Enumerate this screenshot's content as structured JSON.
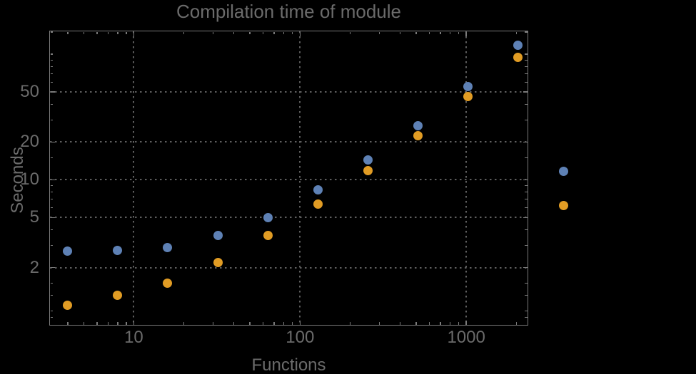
{
  "colors": {
    "background": "#000000",
    "frame": "#7a7a7a",
    "gridline": "#5e5e5e",
    "text": "#6b6b6b",
    "series1": "#5e81b5",
    "series2": "#e19c24"
  },
  "chart_data": {
    "type": "scatter",
    "title": "Compilation time of module",
    "xlabel": "Functions",
    "ylabel": "Seconds",
    "xscale": "log",
    "yscale": "log",
    "xlim": [
      3.1,
      2360
    ],
    "ylim": [
      0.69,
      154.3
    ],
    "grid": true,
    "grid_style": "dotted",
    "legend_position": "outside-right",
    "legend_labels_visible": false,
    "x": [
      4,
      8,
      16,
      32,
      64,
      128,
      256,
      512,
      1024,
      2048
    ],
    "series": [
      {
        "name": "series-1-blue",
        "color": "#5e81b5",
        "values": [
          2.7,
          2.75,
          2.9,
          3.6,
          5.0,
          8.3,
          14.4,
          27,
          55,
          118
        ]
      },
      {
        "name": "series-2-orange",
        "color": "#e19c24",
        "values": [
          1.0,
          1.2,
          1.5,
          2.2,
          3.6,
          6.4,
          11.8,
          22.5,
          46,
          95
        ]
      }
    ],
    "x_ticks": {
      "major": [
        10,
        100,
        1000
      ],
      "major_labels": [
        "10",
        "100",
        "1000"
      ],
      "minor": [
        4,
        5,
        6,
        7,
        8,
        9,
        20,
        30,
        40,
        50,
        60,
        70,
        80,
        90,
        200,
        300,
        400,
        500,
        600,
        700,
        800,
        900,
        2000
      ]
    },
    "y_ticks": {
      "major": [
        2,
        5,
        10,
        20,
        50
      ],
      "major_labels": [
        "2",
        "5",
        "10",
        "20",
        "50"
      ],
      "minor": [
        0.8,
        0.9,
        1.2,
        1.5,
        3,
        4,
        6,
        7,
        8,
        9,
        15,
        30,
        40,
        60,
        70,
        80,
        90,
        100,
        150
      ]
    }
  }
}
